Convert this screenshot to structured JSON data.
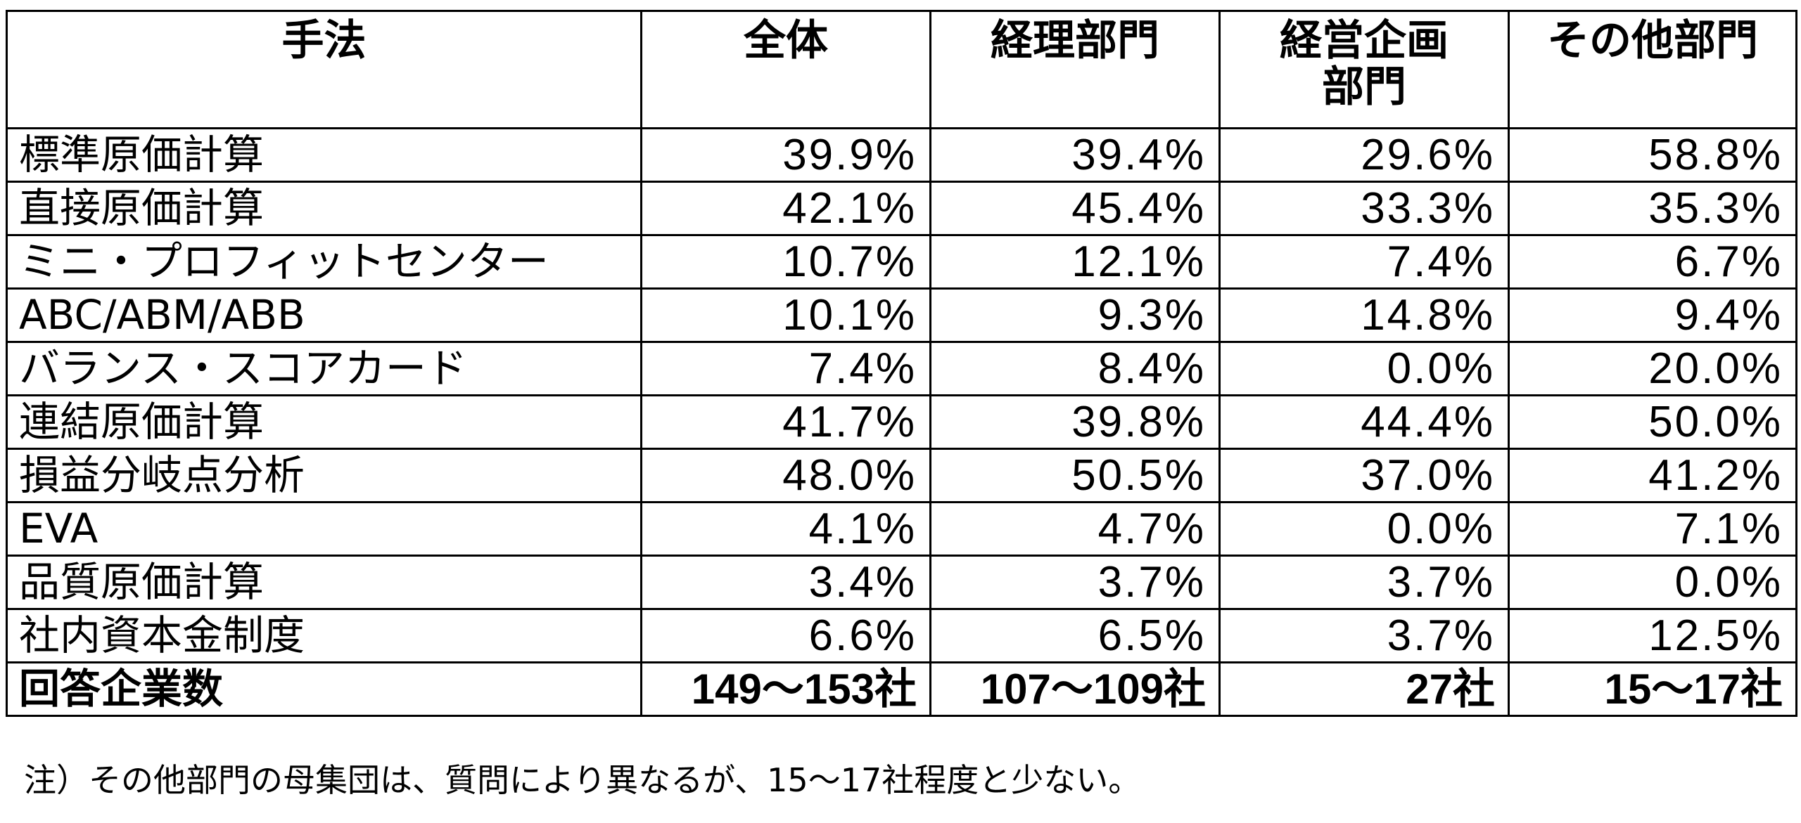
{
  "table": {
    "headers": {
      "method": "手法",
      "all": "全体",
      "accounting": "経理部門",
      "planning_line1": "経営企画",
      "planning_line2": "部門",
      "other": "その他部門"
    },
    "rows": [
      {
        "method": "標準原価計算",
        "all": "39.9%",
        "accounting": "39.4%",
        "planning": "29.6%",
        "other": "58.8%"
      },
      {
        "method": "直接原価計算",
        "all": "42.1%",
        "accounting": "45.4%",
        "planning": "33.3%",
        "other": "35.3%"
      },
      {
        "method": "ミニ・プロフィットセンター",
        "all": "10.7%",
        "accounting": "12.1%",
        "planning": "7.4%",
        "other": "6.7%"
      },
      {
        "method": "ABC/ABM/ABB",
        "all": "10.1%",
        "accounting": "9.3%",
        "planning": "14.8%",
        "other": "9.4%"
      },
      {
        "method": "バランス・スコアカード",
        "all": "7.4%",
        "accounting": "8.4%",
        "planning": "0.0%",
        "other": "20.0%"
      },
      {
        "method": "連結原価計算",
        "all": "41.7%",
        "accounting": "39.8%",
        "planning": "44.4%",
        "other": "50.0%"
      },
      {
        "method": "損益分岐点分析",
        "all": "48.0%",
        "accounting": "50.5%",
        "planning": "37.0%",
        "other": "41.2%"
      },
      {
        "method": "EVA",
        "all": "4.1%",
        "accounting": "4.7%",
        "planning": "0.0%",
        "other": "7.1%"
      },
      {
        "method": "品質原価計算",
        "all": "3.4%",
        "accounting": "3.7%",
        "planning": "3.7%",
        "other": "0.0%"
      },
      {
        "method": "社内資本金制度",
        "all": "6.6%",
        "accounting": "6.5%",
        "planning": "3.7%",
        "other": "12.5%"
      },
      {
        "method": "回答企業数",
        "all": "149～153社",
        "accounting": "107～109社",
        "planning": "27社",
        "other": "15～17社"
      }
    ]
  },
  "note": "注）その他部門の母集団は、質問により異なるが、15～17社程度と少ない。"
}
